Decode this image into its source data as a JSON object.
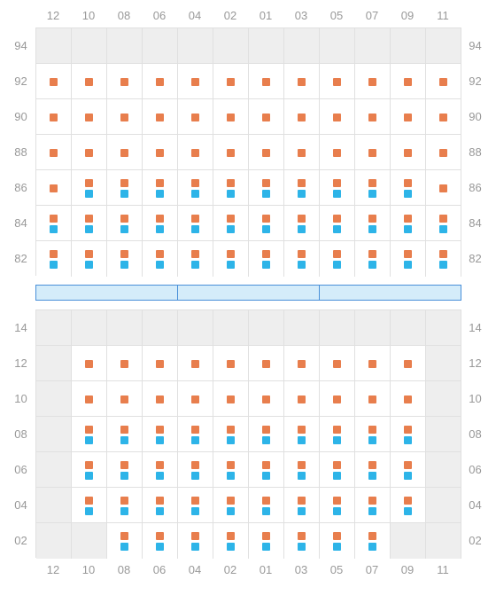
{
  "columns": [
    "12",
    "10",
    "08",
    "06",
    "04",
    "02",
    "01",
    "03",
    "05",
    "07",
    "09",
    "11"
  ],
  "styling": {
    "cell_size": 40,
    "marker_size": 9,
    "colors": {
      "orange": "#e87e4d",
      "blue": "#2db4e8",
      "grid_line": "#e0e0e0",
      "empty_cell": "#eeeeee",
      "label_text": "#999999",
      "divider_fill": "#d4ecfa",
      "divider_border": "#4a90d9",
      "background": "#ffffff"
    },
    "label_fontsize": 13,
    "divider_segments": 3,
    "marker_meanings": {
      "o": "orange",
      "b": "blue",
      "e": "empty",
      "-": "none"
    }
  },
  "upper": {
    "rows": [
      "94",
      "92",
      "90",
      "88",
      "86",
      "84",
      "82"
    ],
    "grid": [
      [
        "e",
        "e",
        "e",
        "e",
        "e",
        "e",
        "e",
        "e",
        "e",
        "e",
        "e",
        "e"
      ],
      [
        "o",
        "o",
        "o",
        "o",
        "o",
        "o",
        "o",
        "o",
        "o",
        "o",
        "o",
        "o"
      ],
      [
        "o",
        "o",
        "o",
        "o",
        "o",
        "o",
        "o",
        "o",
        "o",
        "o",
        "o",
        "o"
      ],
      [
        "o",
        "o",
        "o",
        "o",
        "o",
        "o",
        "o",
        "o",
        "o",
        "o",
        "o",
        "o"
      ],
      [
        "o",
        "ob",
        "ob",
        "ob",
        "ob",
        "ob",
        "ob",
        "ob",
        "ob",
        "ob",
        "ob",
        "o"
      ],
      [
        "ob",
        "ob",
        "ob",
        "ob",
        "ob",
        "ob",
        "ob",
        "ob",
        "ob",
        "ob",
        "ob",
        "ob"
      ],
      [
        "ob",
        "ob",
        "ob",
        "ob",
        "ob",
        "ob",
        "ob",
        "ob",
        "ob",
        "ob",
        "ob",
        "ob"
      ]
    ]
  },
  "lower": {
    "rows": [
      "14",
      "12",
      "10",
      "08",
      "06",
      "04",
      "02"
    ],
    "grid": [
      [
        "e",
        "e",
        "e",
        "e",
        "e",
        "e",
        "e",
        "e",
        "e",
        "e",
        "e",
        "e"
      ],
      [
        "e",
        "o",
        "o",
        "o",
        "o",
        "o",
        "o",
        "o",
        "o",
        "o",
        "o",
        "e"
      ],
      [
        "e",
        "o",
        "o",
        "o",
        "o",
        "o",
        "o",
        "o",
        "o",
        "o",
        "o",
        "e"
      ],
      [
        "e",
        "ob",
        "ob",
        "ob",
        "ob",
        "ob",
        "ob",
        "ob",
        "ob",
        "ob",
        "ob",
        "e"
      ],
      [
        "e",
        "ob",
        "ob",
        "ob",
        "ob",
        "ob",
        "ob",
        "ob",
        "ob",
        "ob",
        "ob",
        "e"
      ],
      [
        "e",
        "ob",
        "ob",
        "ob",
        "ob",
        "ob",
        "ob",
        "ob",
        "ob",
        "ob",
        "ob",
        "e"
      ],
      [
        "e",
        "e",
        "ob",
        "ob",
        "ob",
        "ob",
        "ob",
        "ob",
        "ob",
        "ob",
        "e",
        "e"
      ]
    ]
  }
}
